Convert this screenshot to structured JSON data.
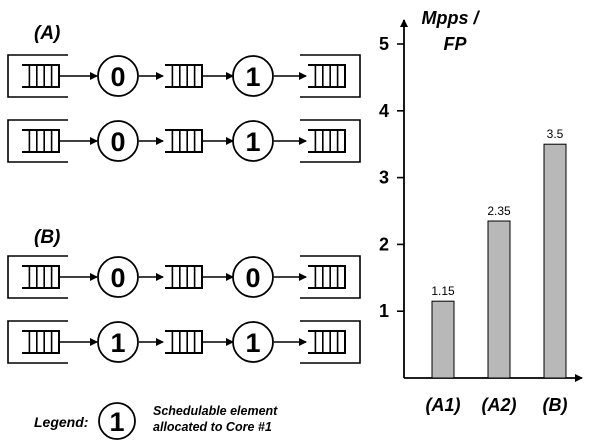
{
  "diagram": {
    "section_a_label": "(A)",
    "section_b_label": "(B)",
    "pipelines": [
      {
        "node1": "0",
        "node2": "1"
      },
      {
        "node1": "0",
        "node2": "1"
      },
      {
        "node1": "0",
        "node2": "0"
      },
      {
        "node1": "1",
        "node2": "1"
      }
    ]
  },
  "legend": {
    "label": "Legend:",
    "symbol": "1",
    "description_line1": "Schedulable element",
    "description_line2": "allocated to Core #1"
  },
  "chart_data": {
    "type": "bar",
    "categories": [
      "(A1)",
      "(A2)",
      "(B)"
    ],
    "values": [
      1.15,
      2.35,
      3.5
    ],
    "data_labels": [
      "1.15",
      "2.35",
      "3.5"
    ],
    "ylabel_line1": "Mpps /",
    "ylabel_line2": "FP",
    "ylim": [
      0,
      5
    ],
    "yticks": [
      "1",
      "2",
      "3",
      "4",
      "5"
    ],
    "grid": false,
    "bar_color": "#b8b8b8"
  }
}
